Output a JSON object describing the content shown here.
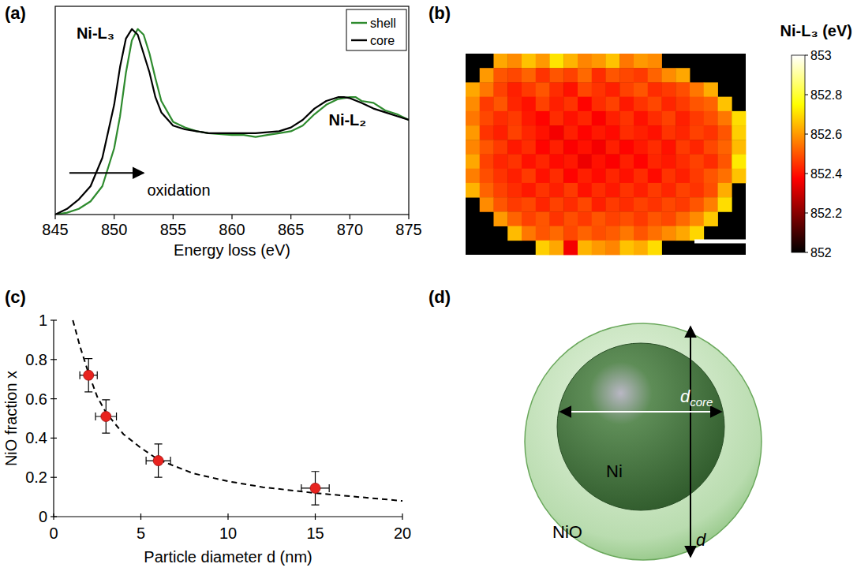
{
  "chart_data": [
    {
      "type": "line",
      "panel_label": "(a)",
      "x_label": "Energy loss (eV)",
      "xlim": [
        845,
        875
      ],
      "xticks": [
        845,
        850,
        855,
        860,
        865,
        870,
        875
      ],
      "ylim": [
        0,
        1.1
      ],
      "tick_labels": "x",
      "legend": "upper-right",
      "series": [
        {
          "name": "shell",
          "color": "#2e8b2e",
          "x": [
            845,
            846,
            847,
            848,
            849,
            850,
            850.5,
            851,
            851.5,
            852,
            852.5,
            853,
            853.5,
            854,
            855,
            856,
            857,
            858,
            860,
            861,
            862,
            863,
            864,
            865,
            866,
            867,
            868,
            869,
            870,
            870.5,
            871,
            872,
            873,
            874,
            875
          ],
          "values": [
            0,
            0.01,
            0.03,
            0.07,
            0.15,
            0.35,
            0.52,
            0.75,
            0.92,
            0.98,
            0.95,
            0.85,
            0.72,
            0.6,
            0.49,
            0.46,
            0.44,
            0.43,
            0.42,
            0.42,
            0.41,
            0.42,
            0.43,
            0.44,
            0.47,
            0.53,
            0.58,
            0.61,
            0.62,
            0.62,
            0.6,
            0.59,
            0.55,
            0.53,
            0.5
          ]
        },
        {
          "name": "core",
          "color": "#000000",
          "x": [
            845,
            846,
            847,
            848,
            849,
            850,
            850.5,
            851,
            851.5,
            852,
            852.5,
            853,
            853.5,
            854,
            855,
            856,
            857,
            858,
            860,
            862,
            864,
            865,
            866,
            867,
            868,
            869,
            869.5,
            870,
            871,
            872,
            873,
            874,
            875
          ],
          "values": [
            0,
            0.03,
            0.08,
            0.15,
            0.3,
            0.58,
            0.78,
            0.93,
            0.98,
            0.95,
            0.85,
            0.75,
            0.62,
            0.54,
            0.47,
            0.45,
            0.44,
            0.43,
            0.43,
            0.43,
            0.44,
            0.46,
            0.5,
            0.56,
            0.6,
            0.62,
            0.62,
            0.615,
            0.59,
            0.56,
            0.54,
            0.52,
            0.5
          ]
        }
      ],
      "annotations": [
        {
          "text": "Ni-L₃",
          "x": 846.8,
          "y": 0.93
        },
        {
          "text": "Ni-L₂",
          "x": 868.2,
          "y": 0.47
        },
        {
          "text": "oxidation",
          "x": 852.8,
          "y": 0.1,
          "arrow_x": [
            846.2,
            852.5
          ],
          "arrow_y": 0.22
        }
      ]
    },
    {
      "type": "heatmap",
      "panel_label": "(b)",
      "colorbar_title": "Ni-L₃ (eV)",
      "tick_labels": false,
      "color_range": [
        852,
        853
      ],
      "color_ticks": [
        852,
        852.2,
        852.4,
        852.6,
        852.8,
        853
      ],
      "cells": [
        [
          null,
          null,
          852.62,
          852.58,
          852.66,
          852.6,
          852.71,
          852.64,
          852.57,
          852.6,
          852.66,
          852.55,
          852.6,
          852.58,
          null,
          null,
          null,
          null,
          null,
          null
        ],
        [
          null,
          852.6,
          852.5,
          852.48,
          852.52,
          852.45,
          852.5,
          852.47,
          852.53,
          852.44,
          852.5,
          852.48,
          852.46,
          852.52,
          852.58,
          852.62,
          null,
          null,
          null,
          null
        ],
        [
          852.62,
          852.55,
          852.47,
          852.42,
          852.46,
          852.5,
          852.44,
          852.4,
          852.48,
          852.45,
          852.42,
          852.47,
          852.5,
          852.44,
          852.46,
          852.49,
          852.55,
          852.63,
          null,
          null
        ],
        [
          852.58,
          852.46,
          852.5,
          852.43,
          852.4,
          852.47,
          852.42,
          852.45,
          852.38,
          852.44,
          852.47,
          852.41,
          852.45,
          852.48,
          852.43,
          852.46,
          852.5,
          852.52,
          852.66,
          null
        ],
        [
          852.55,
          852.48,
          852.44,
          852.46,
          852.41,
          852.38,
          852.44,
          852.4,
          852.43,
          852.37,
          852.42,
          852.45,
          852.4,
          852.44,
          852.47,
          852.42,
          852.46,
          852.49,
          852.55,
          852.7
        ],
        [
          852.6,
          852.45,
          852.42,
          852.47,
          852.43,
          852.4,
          852.36,
          852.42,
          852.38,
          852.41,
          852.39,
          852.44,
          852.42,
          852.4,
          852.45,
          852.43,
          852.47,
          852.45,
          852.5,
          852.68
        ],
        [
          852.57,
          852.5,
          852.46,
          852.41,
          852.44,
          852.38,
          852.42,
          852.37,
          852.4,
          852.36,
          852.42,
          852.38,
          852.41,
          852.44,
          852.4,
          852.46,
          852.43,
          852.48,
          852.52,
          852.65
        ],
        [
          852.62,
          852.47,
          852.43,
          852.45,
          852.4,
          852.43,
          852.39,
          852.41,
          852.35,
          852.4,
          852.37,
          852.42,
          852.38,
          852.43,
          852.41,
          852.44,
          852.47,
          852.44,
          852.5,
          852.72
        ],
        [
          852.56,
          852.49,
          852.45,
          852.42,
          852.46,
          852.4,
          852.44,
          852.38,
          852.42,
          852.39,
          852.43,
          852.4,
          852.44,
          852.39,
          852.45,
          852.42,
          852.46,
          852.5,
          852.54,
          852.66
        ],
        [
          852.64,
          852.52,
          852.47,
          852.44,
          852.41,
          852.45,
          852.42,
          852.46,
          852.4,
          852.44,
          852.41,
          852.45,
          852.42,
          852.46,
          852.43,
          852.47,
          852.45,
          852.49,
          852.63,
          null
        ],
        [
          null,
          852.58,
          852.5,
          852.46,
          852.48,
          852.43,
          852.47,
          852.44,
          852.48,
          852.42,
          852.46,
          852.44,
          852.47,
          852.45,
          852.48,
          852.46,
          852.5,
          852.56,
          852.7,
          null
        ],
        [
          null,
          null,
          852.6,
          852.52,
          852.47,
          852.5,
          852.45,
          852.49,
          852.46,
          852.5,
          852.47,
          852.49,
          852.46,
          852.5,
          852.48,
          852.53,
          852.58,
          852.67,
          null,
          null
        ],
        [
          null,
          null,
          null,
          852.65,
          852.55,
          852.5,
          852.53,
          852.48,
          852.52,
          852.49,
          852.51,
          852.55,
          852.5,
          852.54,
          852.58,
          852.62,
          852.69,
          null,
          null,
          null
        ],
        [
          null,
          null,
          null,
          null,
          null,
          852.68,
          852.62,
          852.36,
          852.64,
          852.6,
          852.57,
          852.66,
          852.63,
          852.7,
          null,
          null,
          null,
          null,
          null,
          null
        ]
      ]
    },
    {
      "type": "scatter",
      "panel_label": "(c)",
      "x_label": "Particle diameter d (nm)",
      "y_label": "NiO fraction x",
      "xlim": [
        0,
        20
      ],
      "xticks": [
        0,
        5,
        10,
        15,
        20
      ],
      "ylim": [
        0,
        1
      ],
      "yticks": [
        0,
        0.2,
        0.4,
        0.6,
        0.8,
        1
      ],
      "series": [
        {
          "type": "scatter",
          "marker": "circle",
          "color": "#e8231f",
          "x": [
            2,
            3,
            6,
            15
          ],
          "values": [
            0.72,
            0.51,
            0.285,
            0.145
          ],
          "x_errors": [
            0.5,
            0.6,
            0.7,
            0.8
          ],
          "y_errors": [
            0.085,
            0.085,
            0.085,
            0.085
          ]
        },
        {
          "type": "line",
          "line_style": "dashed",
          "color": "#000000",
          "x": [
            1.1,
            1.5,
            2,
            2.5,
            3,
            4,
            5,
            6,
            8,
            10,
            12,
            15,
            20
          ],
          "values": [
            1.0,
            0.87,
            0.73,
            0.61,
            0.53,
            0.42,
            0.35,
            0.29,
            0.22,
            0.18,
            0.15,
            0.12,
            0.08
          ]
        }
      ]
    }
  ],
  "diagram": {
    "panel_label": "(d)",
    "labels": {
      "core": "Ni",
      "shell": "NiO",
      "diameter": "d",
      "core_diameter": {
        "symbol": "d",
        "subscript": "core"
      }
    }
  }
}
